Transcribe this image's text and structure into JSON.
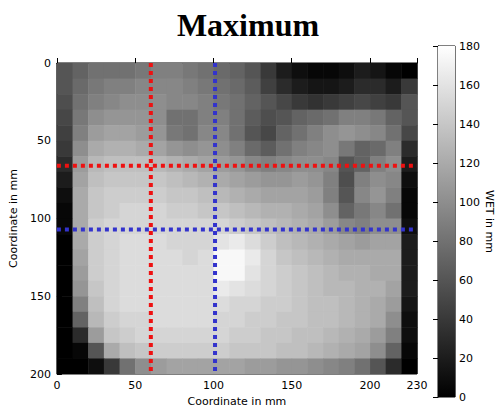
{
  "chart_data": {
    "type": "heatmap",
    "title": "Maximum",
    "xlabel": "Coordinate in mm",
    "ylabel": "Coordinate in mm",
    "xlim": [
      0,
      230
    ],
    "ylim": [
      200,
      0
    ],
    "xticks": [
      0,
      50,
      100,
      150,
      200
    ],
    "yticks": [
      0,
      50,
      100,
      150,
      200
    ],
    "grid": false,
    "cells": {
      "cell_size": 10,
      "x": [
        0,
        10,
        20,
        30,
        40,
        50,
        60,
        70,
        80,
        90,
        100,
        110,
        120,
        130,
        140,
        150,
        160,
        170,
        180,
        190,
        200,
        210,
        220
      ],
      "y": [
        0,
        10,
        20,
        30,
        40,
        50,
        60,
        70,
        80,
        90,
        100,
        110,
        120,
        130,
        140,
        150,
        160,
        170,
        180,
        190
      ],
      "values": [
        [
          60,
          70,
          80,
          80,
          80,
          85,
          90,
          90,
          85,
          80,
          75,
          70,
          60,
          40,
          20,
          10,
          5,
          5,
          10,
          20,
          15,
          5,
          0
        ],
        [
          60,
          75,
          85,
          90,
          90,
          95,
          95,
          95,
          90,
          85,
          80,
          75,
          65,
          45,
          30,
          20,
          15,
          15,
          20,
          30,
          30,
          20,
          40
        ],
        [
          55,
          80,
          90,
          95,
          100,
          100,
          100,
          95,
          95,
          90,
          85,
          80,
          70,
          60,
          50,
          40,
          35,
          40,
          45,
          50,
          45,
          40,
          60
        ],
        [
          50,
          85,
          100,
          105,
          105,
          105,
          100,
          80,
          80,
          90,
          90,
          80,
          65,
          55,
          60,
          70,
          75,
          80,
          90,
          90,
          85,
          70,
          60
        ],
        [
          45,
          90,
          110,
          115,
          115,
          110,
          105,
          85,
          80,
          95,
          95,
          80,
          60,
          50,
          70,
          80,
          90,
          100,
          105,
          100,
          95,
          80,
          50
        ],
        [
          40,
          100,
          120,
          125,
          125,
          120,
          115,
          105,
          100,
          105,
          100,
          90,
          75,
          65,
          80,
          90,
          95,
          100,
          85,
          70,
          75,
          90,
          30
        ],
        [
          30,
          110,
          130,
          135,
          135,
          135,
          130,
          125,
          120,
          115,
          110,
          105,
          95,
          90,
          95,
          100,
          100,
          95,
          60,
          70,
          90,
          100,
          20
        ],
        [
          20,
          115,
          135,
          140,
          140,
          140,
          140,
          135,
          130,
          125,
          120,
          115,
          110,
          105,
          105,
          110,
          105,
          90,
          55,
          90,
          100,
          95,
          10
        ],
        [
          10,
          120,
          140,
          145,
          145,
          145,
          145,
          140,
          140,
          135,
          130,
          125,
          120,
          115,
          115,
          115,
          110,
          90,
          60,
          95,
          105,
          90,
          5
        ],
        [
          5,
          120,
          140,
          145,
          150,
          150,
          150,
          145,
          145,
          140,
          140,
          135,
          130,
          125,
          125,
          120,
          115,
          100,
          70,
          85,
          95,
          80,
          5
        ],
        [
          5,
          120,
          145,
          150,
          150,
          150,
          150,
          150,
          150,
          150,
          150,
          145,
          140,
          135,
          130,
          125,
          120,
          110,
          95,
          90,
          100,
          100,
          10
        ],
        [
          0,
          120,
          145,
          150,
          155,
          155,
          155,
          150,
          150,
          150,
          160,
          165,
          155,
          145,
          135,
          130,
          125,
          120,
          115,
          110,
          115,
          115,
          20
        ],
        [
          0,
          115,
          145,
          150,
          155,
          155,
          155,
          155,
          150,
          155,
          175,
          175,
          165,
          150,
          140,
          135,
          130,
          125,
          120,
          120,
          120,
          120,
          20
        ],
        [
          0,
          110,
          145,
          150,
          155,
          155,
          155,
          155,
          155,
          155,
          175,
          175,
          160,
          150,
          145,
          140,
          135,
          130,
          125,
          125,
          120,
          120,
          20
        ],
        [
          0,
          105,
          140,
          150,
          155,
          155,
          155,
          155,
          155,
          155,
          165,
          160,
          155,
          150,
          145,
          140,
          135,
          130,
          130,
          125,
          125,
          115,
          20
        ],
        [
          0,
          90,
          135,
          150,
          155,
          155,
          155,
          155,
          155,
          155,
          155,
          150,
          150,
          145,
          145,
          140,
          135,
          135,
          130,
          125,
          120,
          110,
          15
        ],
        [
          0,
          70,
          130,
          145,
          150,
          150,
          155,
          155,
          155,
          155,
          150,
          150,
          145,
          145,
          140,
          140,
          135,
          135,
          130,
          125,
          120,
          100,
          10
        ],
        [
          0,
          30,
          110,
          140,
          145,
          150,
          150,
          150,
          150,
          150,
          150,
          145,
          145,
          140,
          140,
          135,
          135,
          130,
          125,
          120,
          110,
          90,
          10
        ],
        [
          0,
          5,
          60,
          120,
          135,
          140,
          145,
          145,
          145,
          145,
          145,
          140,
          140,
          140,
          135,
          135,
          130,
          125,
          120,
          115,
          100,
          70,
          5
        ],
        [
          0,
          0,
          10,
          40,
          80,
          100,
          110,
          115,
          115,
          115,
          115,
          115,
          110,
          110,
          105,
          105,
          100,
          95,
          90,
          80,
          60,
          30,
          0
        ]
      ]
    },
    "colorbar": {
      "label": "WET in mm",
      "range": [
        0,
        180
      ],
      "ticks": [
        0,
        20,
        40,
        60,
        80,
        100,
        120,
        140,
        160,
        180
      ],
      "colors": [
        "#000000",
        "#ffffff"
      ]
    },
    "lines": [
      {
        "x": 60,
        "color": "#ee1111"
      },
      {
        "y": 66,
        "color": "#ee1111"
      },
      {
        "x": 101,
        "color": "#3333cc"
      },
      {
        "y": 107,
        "color": "#3333cc"
      }
    ]
  }
}
